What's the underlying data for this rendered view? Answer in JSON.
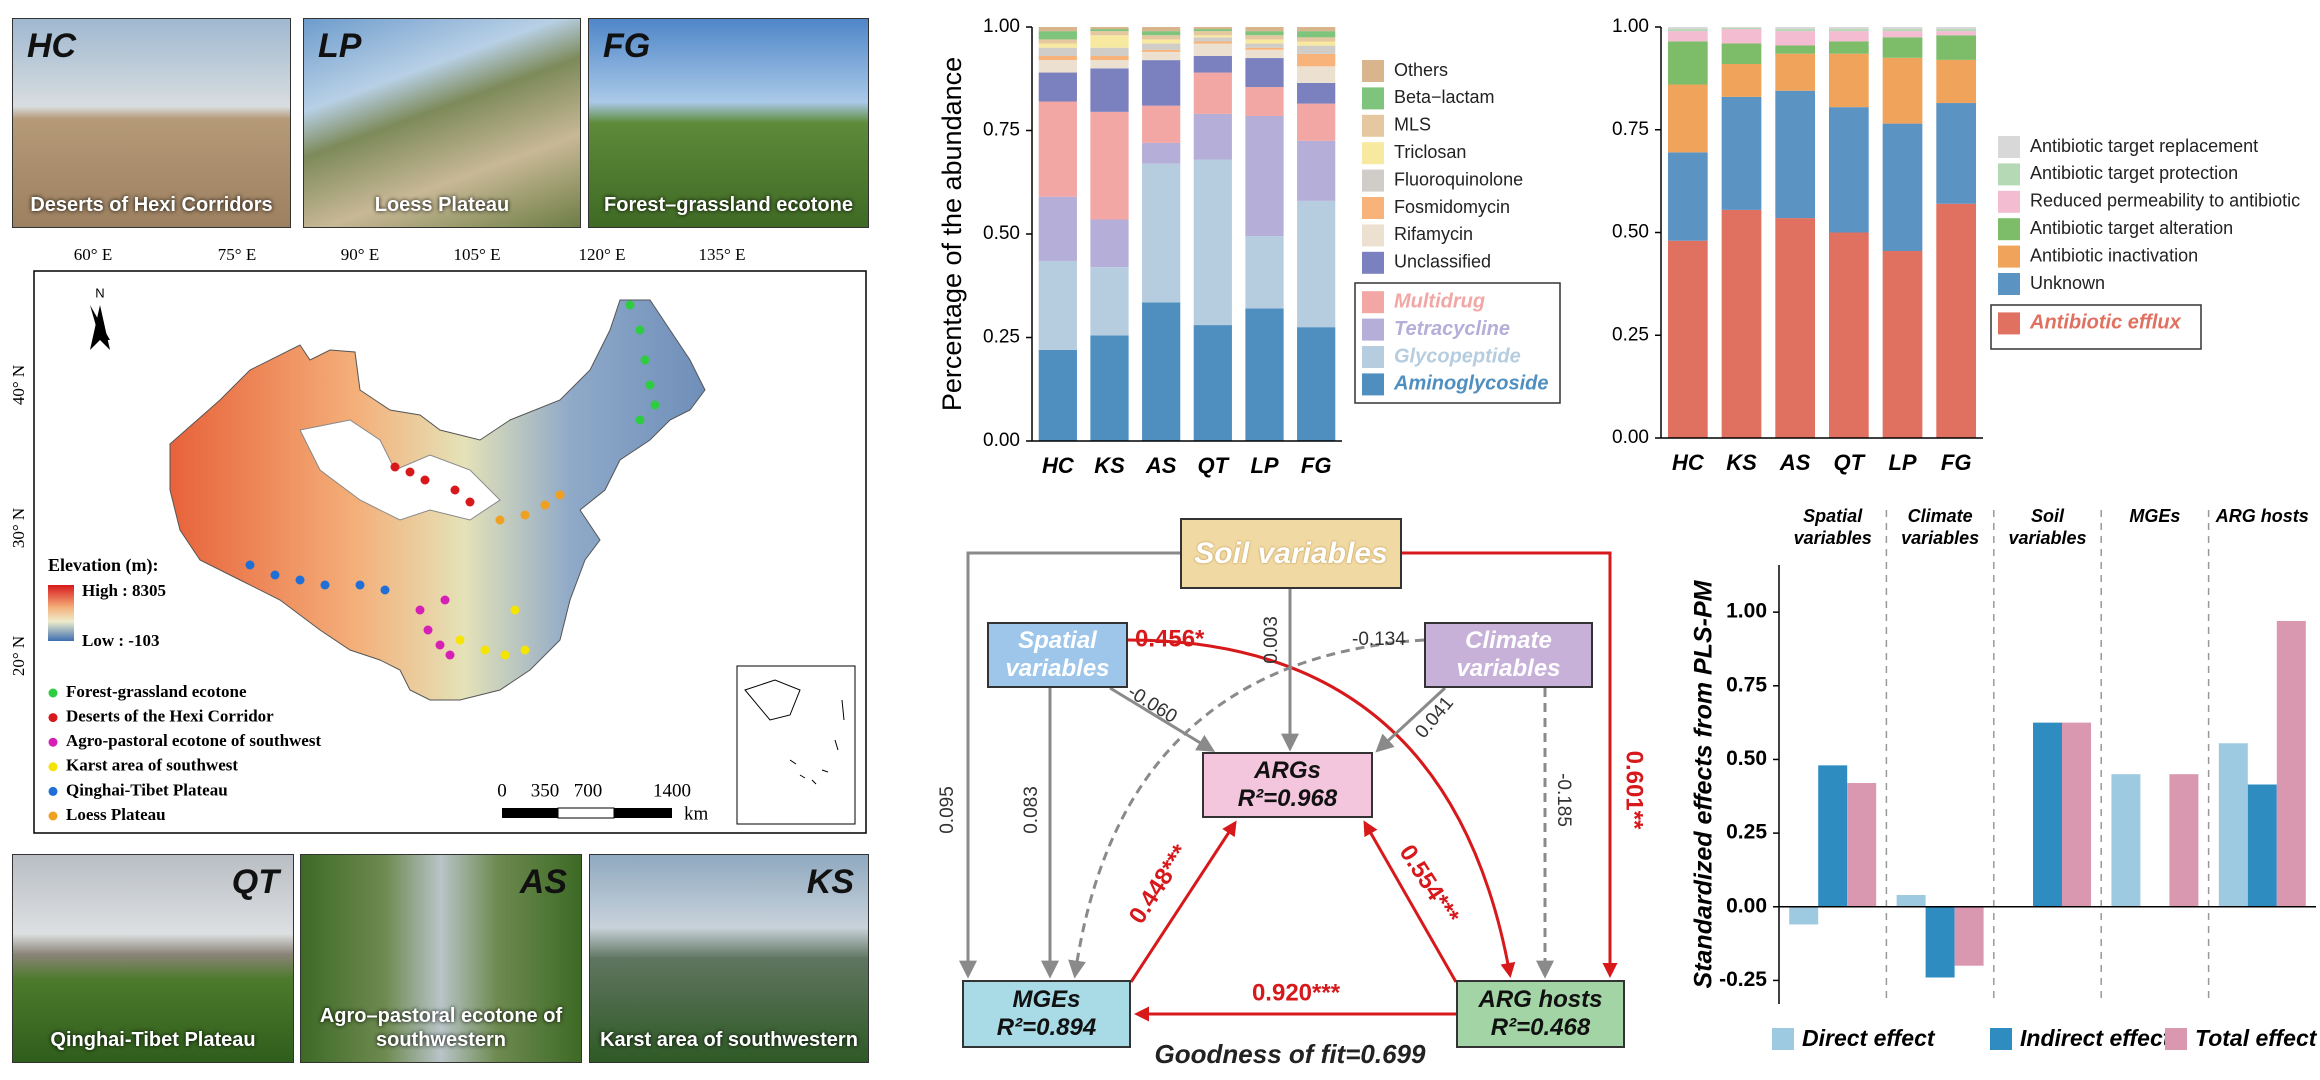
{
  "photos": [
    {
      "code": "HC",
      "caption": "Deserts of Hexi Corridors"
    },
    {
      "code": "LP",
      "caption": "Loess Plateau"
    },
    {
      "code": "FG",
      "caption": "Forest–grassland ecotone"
    },
    {
      "code": "QT",
      "caption": "Qinghai-Tibet Plateau"
    },
    {
      "code": "AS",
      "caption": "Agro–pastoral ecotone of southwestern"
    },
    {
      "code": "KS",
      "caption": "Karst area of southwestern"
    }
  ],
  "map": {
    "longitudes": [
      "60° E",
      "75° E",
      "90° E",
      "105° E",
      "120° E",
      "135° E"
    ],
    "latitudes": [
      "40° N",
      "30° N",
      "20° N"
    ],
    "north": "N",
    "elevation_title": "Elevation (m):",
    "elevation_high": "High : 8305",
    "elevation_low": "Low : -103",
    "sites": [
      {
        "name": "Forest-grassland ecotone",
        "color": "#2ecc40"
      },
      {
        "name": "Deserts of the Hexi Corridor",
        "color": "#d7191c"
      },
      {
        "name": "Agro-pastoral ecotone of southwest",
        "color": "#d61fb5"
      },
      {
        "name": "Karst area of southwest",
        "color": "#f5e400"
      },
      {
        "name": "Qinghai-Tibet Plateau",
        "color": "#1f6fd6"
      },
      {
        "name": "Loess Plateau",
        "color": "#f0a020"
      }
    ],
    "scale": [
      "0",
      "350",
      "700",
      "1400"
    ],
    "scale_unit": "km"
  },
  "chart_data": [
    {
      "type": "bar",
      "stacked": true,
      "ylabel": "Percentage of the abundance",
      "categories": [
        "HC",
        "KS",
        "AS",
        "QT",
        "LP",
        "FG"
      ],
      "ylim": [
        0,
        1
      ],
      "yticks": [
        {
          "value": 0,
          "label": "0.00"
        },
        {
          "value": 0.25,
          "label": "0.25"
        },
        {
          "value": 0.5,
          "label": "0.50"
        },
        {
          "value": 0.75,
          "label": "0.75"
        },
        {
          "value": 1,
          "label": "1.00"
        }
      ],
      "series": [
        {
          "name": "Aminoglycoside",
          "color": "#4f8fc0",
          "values": [
            0.22,
            0.255,
            0.335,
            0.28,
            0.32,
            0.275
          ]
        },
        {
          "name": "Glycopeptide",
          "color": "#b6cde0",
          "values": [
            0.215,
            0.165,
            0.335,
            0.4,
            0.175,
            0.305
          ]
        },
        {
          "name": "Tetracycline",
          "color": "#b5aed8",
          "values": [
            0.155,
            0.115,
            0.05,
            0.11,
            0.29,
            0.145
          ]
        },
        {
          "name": "Multidrug",
          "color": "#f2a7a5",
          "values": [
            0.23,
            0.26,
            0.09,
            0.1,
            0.07,
            0.09
          ]
        },
        {
          "name": "Unclassified",
          "color": "#7b80bf",
          "values": [
            0.07,
            0.105,
            0.11,
            0.04,
            0.07,
            0.05
          ]
        },
        {
          "name": "Rifamycin",
          "color": "#ece1d1",
          "values": [
            0.03,
            0.02,
            0.02,
            0.03,
            0.02,
            0.04
          ]
        },
        {
          "name": "Fosmidomycin",
          "color": "#f7b37a",
          "values": [
            0.01,
            0.01,
            0.005,
            0.005,
            0.005,
            0.03
          ]
        },
        {
          "name": "Fluoroquinolone",
          "color": "#d0ccc8",
          "values": [
            0.02,
            0.02,
            0.015,
            0.01,
            0.01,
            0.02
          ]
        },
        {
          "name": "Triclosan",
          "color": "#f7e9a0",
          "values": [
            0.01,
            0.03,
            0.01,
            0.005,
            0.01,
            0.01
          ]
        },
        {
          "name": "MLS",
          "color": "#e6c8a0",
          "values": [
            0.01,
            0.01,
            0.01,
            0.01,
            0.01,
            0.01
          ]
        },
        {
          "name": "Beta−lactam",
          "color": "#7fc47c",
          "values": [
            0.02,
            0.005,
            0.01,
            0.005,
            0.01,
            0.015
          ]
        },
        {
          "name": "Others",
          "color": "#d9b58e",
          "values": [
            0.01,
            0.005,
            0.01,
            0.005,
            0.01,
            0.01
          ]
        }
      ]
    },
    {
      "type": "bar",
      "stacked": true,
      "categories": [
        "HC",
        "KS",
        "AS",
        "QT",
        "LP",
        "FG"
      ],
      "ylim": [
        0,
        1
      ],
      "yticks": [
        {
          "value": 0,
          "label": "0.00"
        },
        {
          "value": 0.25,
          "label": "0.25"
        },
        {
          "value": 0.5,
          "label": "0.50"
        },
        {
          "value": 0.75,
          "label": "0.75"
        },
        {
          "value": 1,
          "label": "1.00"
        }
      ],
      "series": [
        {
          "name": "Antibiotic efflux",
          "color": "#e07060",
          "values": [
            0.48,
            0.555,
            0.535,
            0.5,
            0.455,
            0.57
          ]
        },
        {
          "name": "Unknown",
          "color": "#5b93c3",
          "values": [
            0.215,
            0.275,
            0.31,
            0.305,
            0.31,
            0.245
          ]
        },
        {
          "name": "Antibiotic inactivation",
          "color": "#f0a35a",
          "values": [
            0.165,
            0.08,
            0.09,
            0.13,
            0.16,
            0.105
          ]
        },
        {
          "name": "Antibiotic target alteration",
          "color": "#7dbd6a",
          "values": [
            0.105,
            0.05,
            0.02,
            0.03,
            0.05,
            0.06
          ]
        },
        {
          "name": "Reduced permeability to antibiotic",
          "color": "#f3bcd0",
          "values": [
            0.025,
            0.035,
            0.035,
            0.025,
            0.015,
            0.01
          ]
        },
        {
          "name": "Antibiotic target protection",
          "color": "#b5d9b5",
          "values": [
            0.005,
            0.003,
            0.005,
            0.005,
            0.005,
            0.005
          ]
        },
        {
          "name": "Antibiotic target replacement",
          "color": "#d8d8d8",
          "values": [
            0.005,
            0.002,
            0.005,
            0.005,
            0.005,
            0.005
          ]
        }
      ]
    },
    {
      "type": "bar",
      "stacked": false,
      "ylabel": "Standardized effects from PLS-PM",
      "categories": [
        "Spatial variables",
        "Climate variables",
        "Soil variables",
        "MGEs",
        "ARG hosts"
      ],
      "ylim": [
        -0.33,
        1.16
      ],
      "yticks": [
        {
          "value": -0.25,
          "label": "-0.25"
        },
        {
          "value": 0,
          "label": "0.00"
        },
        {
          "value": 0.25,
          "label": "0.25"
        },
        {
          "value": 0.5,
          "label": "0.50"
        },
        {
          "value": 0.75,
          "label": "0.75"
        },
        {
          "value": 1,
          "label": "1.00"
        }
      ],
      "series": [
        {
          "name": "Direct effect",
          "color": "#9ecae1",
          "values": [
            -0.06,
            0.04,
            null,
            0.45,
            0.555
          ]
        },
        {
          "name": "Indirect effect",
          "color": "#2e8cc0",
          "values": [
            0.48,
            -0.24,
            0.625,
            null,
            0.415
          ]
        },
        {
          "name": "Total effect",
          "color": "#d998b0",
          "values": [
            0.42,
            -0.2,
            0.625,
            0.45,
            0.97
          ]
        }
      ]
    }
  ],
  "path_model": {
    "nodes": [
      {
        "label": "Soil variables"
      },
      {
        "label": "Spatial variables"
      },
      {
        "label": "Climate variables"
      },
      {
        "label": "ARGs",
        "r2": "R²=0.968"
      },
      {
        "label": "MGEs",
        "r2": "R²=0.894"
      },
      {
        "label": "ARG hosts",
        "r2": "R²=0.468"
      }
    ],
    "edges": [
      {
        "label": "0.456*"
      },
      {
        "label": "0.003"
      },
      {
        "label": "-0.134"
      },
      {
        "label": "-0.060"
      },
      {
        "label": "0.041"
      },
      {
        "label": "0.095"
      },
      {
        "label": "0.083"
      },
      {
        "label": "-0.185"
      },
      {
        "label": "0.601**"
      },
      {
        "label": "0.448***"
      },
      {
        "label": "0.554***"
      },
      {
        "label": "0.920***"
      }
    ],
    "fit": "Goodness of fit=0.699"
  }
}
